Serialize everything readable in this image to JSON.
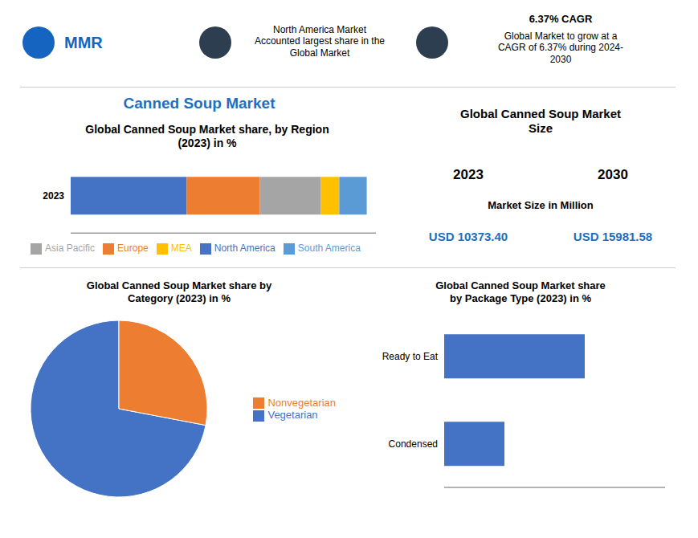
{
  "title": "Canned Soup Market",
  "annotations": [
    {
      "text": "MMR"
    },
    {
      "text": "North America Market\nAccounted largest share in the\nGlobal Market"
    },
    {
      "text": "6.37% CAGR"
    },
    {
      "text": "Global Market to grow at a\nCAGR of 6.37% during 2024-\n2030"
    },
    {
      "text": "Global Canned Soup Market\nSize"
    },
    {
      "text": "2023"
    },
    {
      "text": "2030"
    },
    {
      "text": "Market Size in Million"
    },
    {
      "text": "USD 10373.40",
      "color": "#1F6FBF"
    },
    {
      "text": "USD 15981.58",
      "color": "#1F6FBF"
    }
  ],
  "chart_data": [
    {
      "type": "bar",
      "title": "Global Canned Soup Market share, by Region\n(2023) in %",
      "orientation": "horizontal",
      "stacked": true,
      "categories": [
        "2023"
      ],
      "series": [
        {
          "name": "North America",
          "color": "#4472C4",
          "values": [
            38
          ]
        },
        {
          "name": "Europe",
          "color": "#ED7D31",
          "values": [
            24
          ]
        },
        {
          "name": "Asia Pacific",
          "color": "#A5A5A5",
          "values": [
            20
          ]
        },
        {
          "name": "MEA",
          "color": "#FFC000",
          "values": [
            6
          ]
        },
        {
          "name": "South America",
          "color": "#5B9BD5",
          "values": [
            9
          ]
        }
      ],
      "xlim": [
        0,
        100
      ],
      "xticks": [],
      "tick_labels": "y",
      "legend": "bottom"
    },
    {
      "type": "pie",
      "title": "Global Canned Soup Market share by\nCategory  (2023) in %",
      "categories": [
        "Vegetarian",
        "Nonvegetarian"
      ],
      "values": [
        72,
        28
      ],
      "colors": [
        "#4472C4",
        "#ED7D31"
      ],
      "legend": "right"
    },
    {
      "type": "bar",
      "title": "Global Canned Soup Market share\nby Package Type   (2023) in %",
      "orientation": "horizontal",
      "categories": [
        "Ready to Eat",
        "Condensed"
      ],
      "values": [
        70,
        30
      ],
      "color": "#4472C4",
      "xlim": [
        0,
        110
      ],
      "xticks": [],
      "tick_labels": "y"
    }
  ]
}
